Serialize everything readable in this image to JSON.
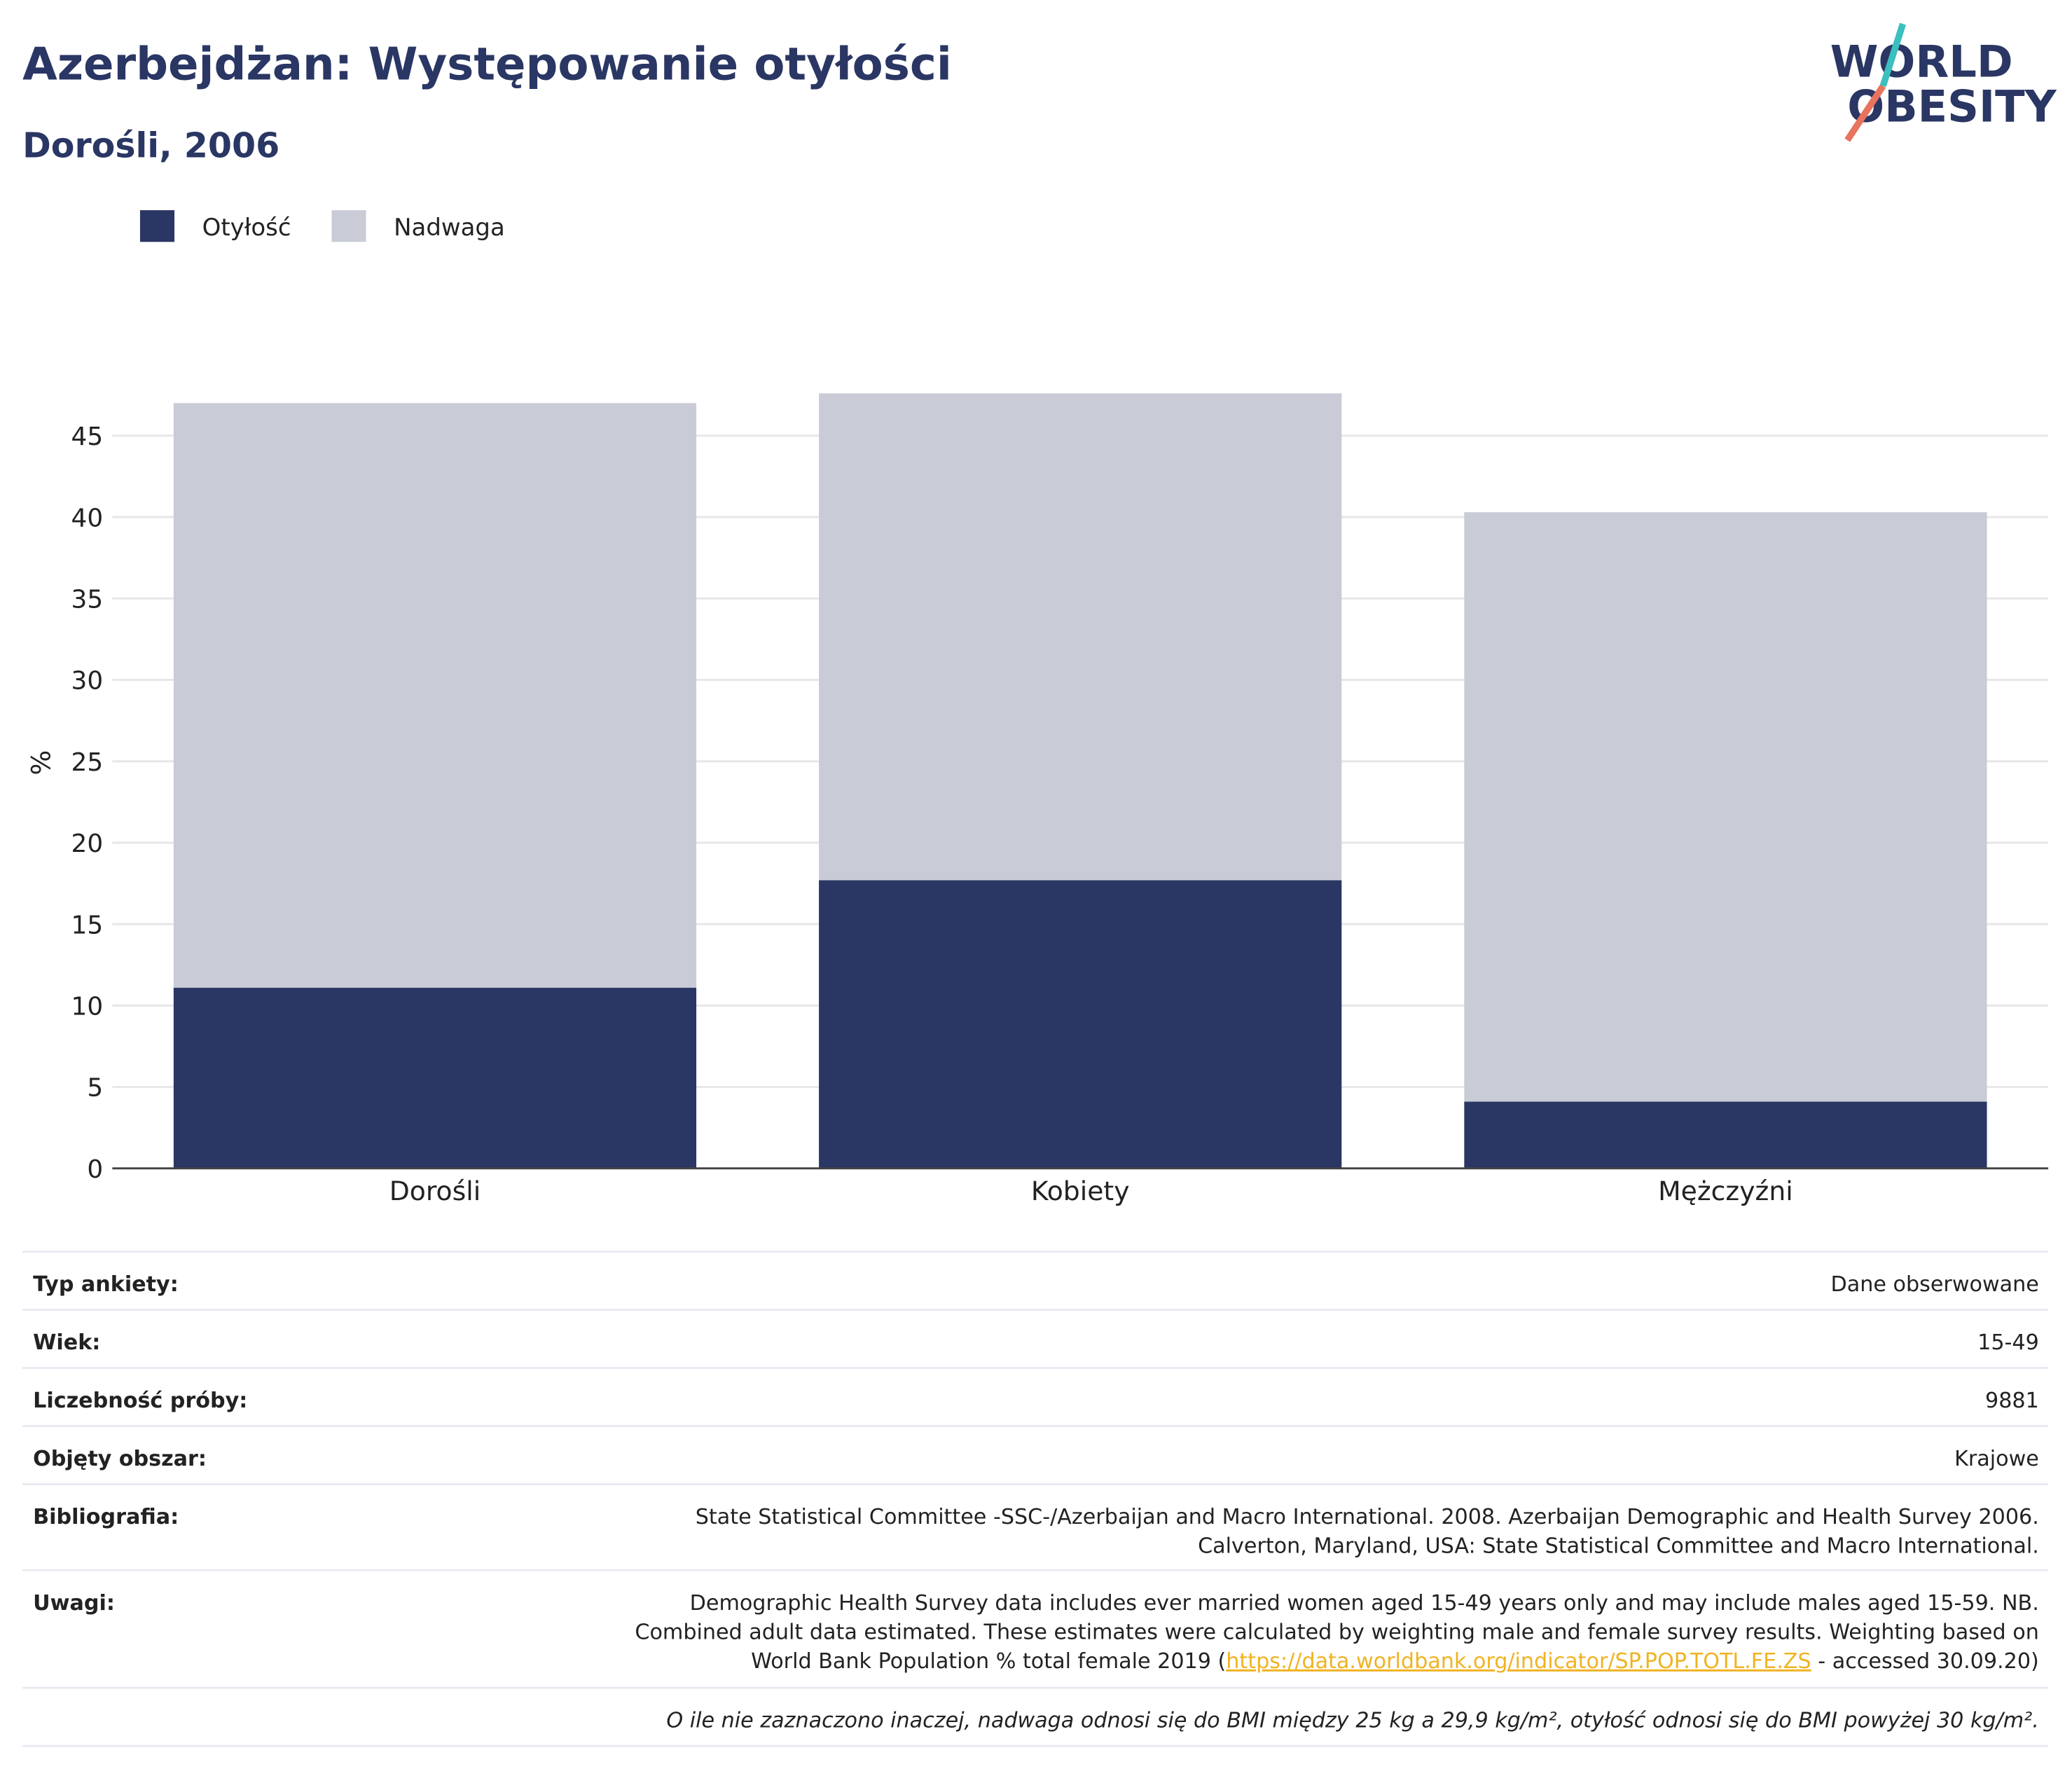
{
  "chart_data": {
    "type": "bar",
    "stacked": true,
    "title": "Azerbejdżan: Występowanie otyłości",
    "subtitle": "Dorośli, 2006",
    "y_label": "%",
    "categories": [
      "Dorośli",
      "Kobiety",
      "Mężczyźni"
    ],
    "series": [
      {
        "name": "Otyłość",
        "color": "#2a3663",
        "values": [
          11.1,
          17.7,
          4.1
        ]
      },
      {
        "name": "Nadwaga",
        "color": "#c9cbd7",
        "values": [
          35.9,
          29.9,
          36.2
        ]
      }
    ],
    "ylim": [
      0,
      50
    ],
    "yticks": [
      0,
      5,
      10,
      15,
      20,
      25,
      30,
      35,
      40,
      45
    ],
    "grid": true
  },
  "logo": [
    "WORLD",
    "OBESITY"
  ],
  "table": {
    "rows": [
      {
        "label": "Typ ankiety:",
        "value": [
          "Dane obserwowane"
        ]
      },
      {
        "label": "Wiek:",
        "value": [
          "15-49"
        ]
      },
      {
        "label": "Liczebność próby:",
        "value": [
          "9881"
        ]
      },
      {
        "label": "Objęty obszar:",
        "value": [
          "Krajowe"
        ]
      },
      {
        "label": "Bibliografia:",
        "value": [
          "State Statistical Committee -SSC-/Azerbaijan and Macro International. 2008. Azerbaijan Demographic and Health Survey 2006.",
          "Calverton, Maryland, USA: State Statistical Committee and Macro International."
        ]
      },
      {
        "label": "Uwagi:",
        "value": [
          "Demographic Health Survey data includes ever married women aged 15-49 years only and may include males aged 15-59. NB.",
          "Combined adult data estimated. These estimates were calculated by weighting male and female survey results. Weighting based on",
          [
            "World Bank Population % total female 2019 (",
            "https://data.worldbank.org/indicator/SP.POP.TOTL.FE.ZS",
            " - accessed 30.09.20)"
          ]
        ]
      }
    ]
  },
  "footnote": "O ile nie zaznaczono inaczej, nadwaga odnosi się do BMI między 25 kg a 29,9 kg/m², otyłość odnosi się do BMI powyżej 30 kg/m²."
}
